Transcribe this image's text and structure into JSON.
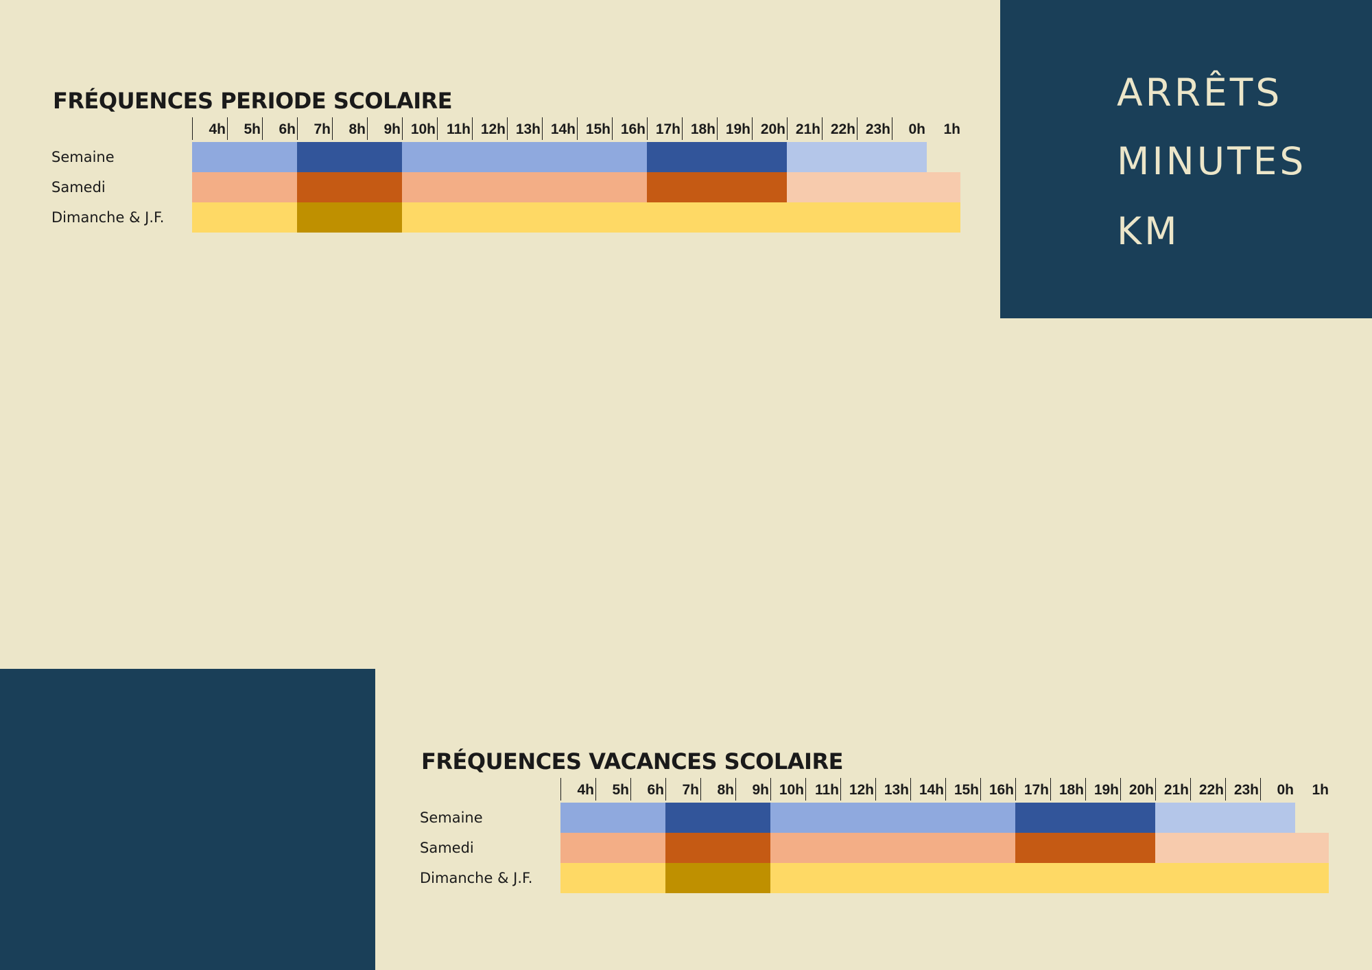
{
  "stats": [
    "ARRÊTS",
    "MINUTES",
    "KM"
  ],
  "hours": [
    "4h",
    "5h",
    "6h",
    "7h",
    "8h",
    "9h",
    "10h",
    "11h",
    "12h",
    "13h",
    "14h",
    "15h",
    "16h",
    "17h",
    "18h",
    "19h",
    "20h",
    "21h",
    "22h",
    "23h",
    "0h",
    "1h"
  ],
  "rows": [
    "Semaine",
    "Samedi",
    "Dimanche & J.F."
  ],
  "colors": {
    "background": "#ece6c9",
    "panel": "#1a3f58",
    "semaine_normal": "#8fa9de",
    "semaine_peak": "#32559a",
    "semaine_evening": "#b4c6e9",
    "samedi_normal": "#f3ae86",
    "samedi_peak": "#c55a14",
    "samedi_evening": "#f7cbad",
    "dimanche_normal": "#fed965",
    "dimanche_peak": "#bf9000"
  },
  "schedules": [
    {
      "title": "FRÉQUENCES PERIODE SCOLAIRE",
      "bands": {
        "Semaine": [
          {
            "from": "4h",
            "to": "7h",
            "level": "normal"
          },
          {
            "from": "7h",
            "to": "10h",
            "level": "peak"
          },
          {
            "from": "10h",
            "to": "17h",
            "level": "normal"
          },
          {
            "from": "17h",
            "to": "21h",
            "level": "peak"
          },
          {
            "from": "21h",
            "to": "1h",
            "level": "evening"
          }
        ],
        "Samedi": [
          {
            "from": "4h",
            "to": "7h",
            "level": "normal"
          },
          {
            "from": "7h",
            "to": "10h",
            "level": "peak"
          },
          {
            "from": "10h",
            "to": "17h",
            "level": "normal"
          },
          {
            "from": "17h",
            "to": "21h",
            "level": "peak"
          },
          {
            "from": "21h",
            "to": "1h+",
            "level": "evening"
          }
        ],
        "Dimanche & J.F.": [
          {
            "from": "4h",
            "to": "7h",
            "level": "normal"
          },
          {
            "from": "7h",
            "to": "10h",
            "level": "peak"
          },
          {
            "from": "10h",
            "to": "1h+",
            "level": "normal"
          }
        ]
      }
    },
    {
      "title": "FRÉQUENCES VACANCES SCOLAIRE",
      "bands": {
        "Semaine": [
          {
            "from": "4h",
            "to": "7h",
            "level": "normal"
          },
          {
            "from": "7h",
            "to": "10h",
            "level": "peak"
          },
          {
            "from": "10h",
            "to": "17h",
            "level": "normal"
          },
          {
            "from": "17h",
            "to": "21h",
            "level": "peak"
          },
          {
            "from": "21h",
            "to": "1h",
            "level": "evening"
          }
        ],
        "Samedi": [
          {
            "from": "4h",
            "to": "7h",
            "level": "normal"
          },
          {
            "from": "7h",
            "to": "10h",
            "level": "peak"
          },
          {
            "from": "10h",
            "to": "17h",
            "level": "normal"
          },
          {
            "from": "17h",
            "to": "21h",
            "level": "peak"
          },
          {
            "from": "21h",
            "to": "1h+",
            "level": "evening"
          }
        ],
        "Dimanche & J.F.": [
          {
            "from": "4h",
            "to": "7h",
            "level": "normal"
          },
          {
            "from": "7h",
            "to": "10h",
            "level": "peak"
          },
          {
            "from": "10h",
            "to": "1h+",
            "level": "normal"
          }
        ]
      }
    }
  ]
}
